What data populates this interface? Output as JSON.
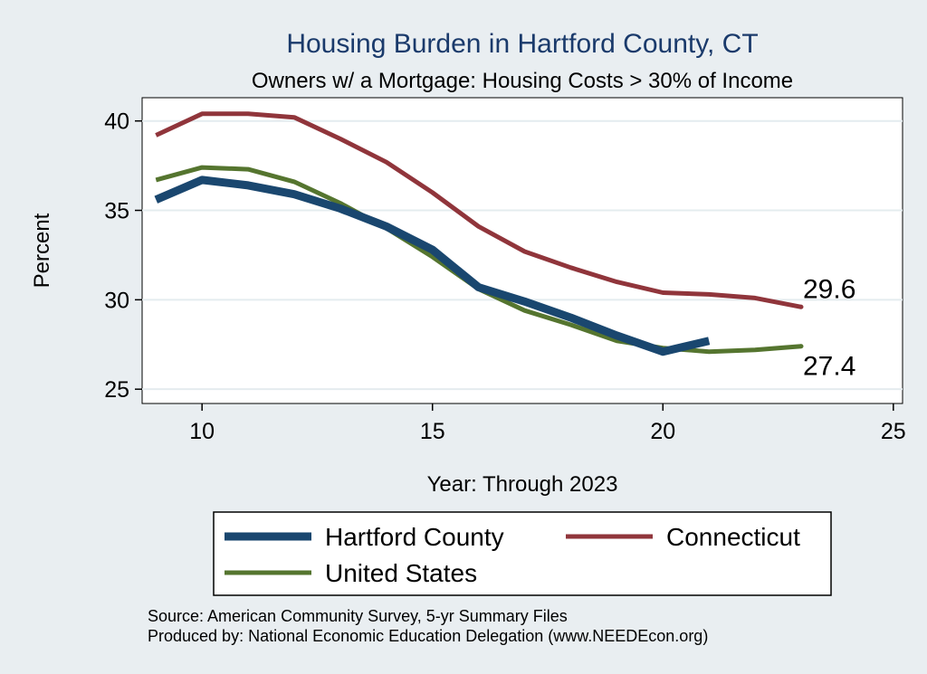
{
  "chart_data": {
    "type": "line",
    "title": "Housing Burden in Hartford County, CT",
    "subtitle": "Owners w/ a Mortgage: Housing Costs > 30% of Income",
    "xlabel": "Year: Through 2023",
    "ylabel": "Percent",
    "xlim": [
      8.7,
      25.2
    ],
    "ylim": [
      24.2,
      41.3
    ],
    "xticks": [
      10,
      15,
      20,
      25
    ],
    "yticks": [
      25,
      30,
      35,
      40
    ],
    "grid": true,
    "legend_position": "bottom",
    "series": [
      {
        "name": "Hartford County",
        "color": "#1a476f",
        "width": 9,
        "x": [
          9,
          10,
          11,
          12,
          13,
          14,
          15,
          16,
          17,
          18,
          19,
          20,
          21
        ],
        "values": [
          35.6,
          36.7,
          36.4,
          35.9,
          35.1,
          34.1,
          32.8,
          30.7,
          29.9,
          29.0,
          28.0,
          27.1,
          27.7
        ]
      },
      {
        "name": "Connecticut",
        "color": "#90353b",
        "width": 5,
        "x": [
          9,
          10,
          11,
          12,
          13,
          14,
          15,
          16,
          17,
          18,
          19,
          20,
          21,
          22,
          23
        ],
        "values": [
          39.2,
          40.4,
          40.4,
          40.2,
          39.0,
          37.7,
          36.0,
          34.1,
          32.7,
          31.8,
          31.0,
          30.4,
          30.3,
          30.1,
          29.6
        ]
      },
      {
        "name": "United States",
        "color": "#55752f",
        "width": 5,
        "x": [
          9,
          10,
          11,
          12,
          13,
          14,
          15,
          16,
          17,
          18,
          19,
          20,
          21,
          22,
          23
        ],
        "values": [
          36.7,
          37.4,
          37.3,
          36.6,
          35.4,
          34.0,
          32.4,
          30.6,
          29.4,
          28.6,
          27.7,
          27.3,
          27.1,
          27.2,
          27.4
        ]
      }
    ],
    "end_labels": [
      {
        "series": "Connecticut",
        "text": "29.6"
      },
      {
        "series": "United States",
        "text": "27.4"
      }
    ],
    "notes": [
      "Source: American Community Survey, 5-yr Summary Files",
      "Produced by: National Economic Education Delegation (www.NEEDEcon.org)"
    ]
  }
}
